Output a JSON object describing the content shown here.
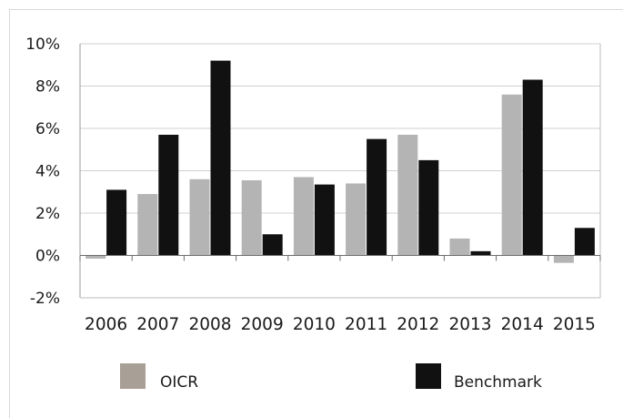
{
  "chart_data": {
    "type": "bar",
    "title": "",
    "xlabel": "",
    "ylabel": "",
    "categories": [
      "2006",
      "2007",
      "2008",
      "2009",
      "2010",
      "2011",
      "2012",
      "2013",
      "2014",
      "2015"
    ],
    "series": [
      {
        "name": "OICR",
        "color": "#b4b4b4",
        "values": [
          -0.15,
          2.9,
          3.6,
          3.55,
          3.7,
          3.4,
          5.7,
          0.8,
          7.6,
          -0.35
        ]
      },
      {
        "name": "Benchmark",
        "color": "#111111",
        "values": [
          3.1,
          5.7,
          9.2,
          1.0,
          3.35,
          5.5,
          4.5,
          0.2,
          8.3,
          1.3
        ]
      }
    ],
    "ylim": [
      -2,
      10
    ],
    "yticks": [
      -2,
      0,
      2,
      4,
      6,
      8,
      10
    ],
    "ytick_labels": [
      "-2%",
      "0%",
      "2%",
      "4%",
      "6%",
      "8%",
      "10%"
    ],
    "grid": true,
    "legend_position": "bottom",
    "legend_colors": [
      "#a89f96",
      "#111111"
    ]
  }
}
